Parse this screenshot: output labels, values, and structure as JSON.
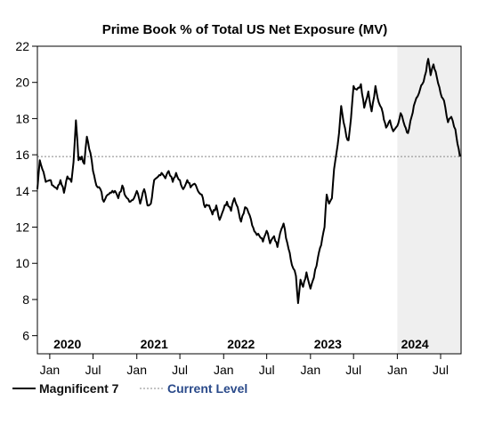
{
  "chart_data": {
    "type": "line",
    "title": "Prime Book % of Total US Net Exposure (MV)",
    "xlabel": "",
    "ylabel": "",
    "ylim": [
      5,
      22
    ],
    "yticks": [
      6,
      8,
      10,
      12,
      14,
      16,
      18,
      20,
      22
    ],
    "xlim": [
      "2019-11-10",
      "2024-09-25"
    ],
    "month_ticks": [
      {
        "date": "2020-01-01",
        "label": "Jan"
      },
      {
        "date": "2020-07-01",
        "label": "Jul"
      },
      {
        "date": "2021-01-01",
        "label": "Jan"
      },
      {
        "date": "2021-07-01",
        "label": "Jul"
      },
      {
        "date": "2022-01-01",
        "label": "Jan"
      },
      {
        "date": "2022-07-01",
        "label": "Jul"
      },
      {
        "date": "2023-01-01",
        "label": "Jan"
      },
      {
        "date": "2023-07-01",
        "label": "Jul"
      },
      {
        "date": "2024-01-01",
        "label": "Jan"
      },
      {
        "date": "2024-07-01",
        "label": "Jul"
      }
    ],
    "year_labels": [
      {
        "date": "2020-03-15",
        "label": "2020"
      },
      {
        "date": "2021-03-15",
        "label": "2021"
      },
      {
        "date": "2022-03-15",
        "label": "2022"
      },
      {
        "date": "2023-03-15",
        "label": "2023"
      },
      {
        "date": "2024-03-15",
        "label": "2024"
      }
    ],
    "shaded_region": {
      "start": "2024-01-01",
      "end": "2024-09-25",
      "color": "#efefef"
    },
    "reference_line": {
      "name": "Current Level",
      "value": 15.9,
      "color": "#888888"
    },
    "series": [
      {
        "name": "Magnificent 7",
        "color": "#000000",
        "points": [
          [
            "2019-11-10",
            14.1
          ],
          [
            "2019-11-20",
            15.7
          ],
          [
            "2019-12-01",
            15.2
          ],
          [
            "2019-12-15",
            14.5
          ],
          [
            "2020-01-01",
            14.6
          ],
          [
            "2020-01-15",
            14.3
          ],
          [
            "2020-02-01",
            14.1
          ],
          [
            "2020-02-15",
            14.6
          ],
          [
            "2020-03-01",
            13.9
          ],
          [
            "2020-03-15",
            14.8
          ],
          [
            "2020-04-01",
            14.5
          ],
          [
            "2020-04-10",
            15.6
          ],
          [
            "2020-04-20",
            17.9
          ],
          [
            "2020-05-01",
            15.7
          ],
          [
            "2020-05-15",
            15.9
          ],
          [
            "2020-05-25",
            15.5
          ],
          [
            "2020-06-05",
            17.0
          ],
          [
            "2020-06-20",
            16.1
          ],
          [
            "2020-07-01",
            15.1
          ],
          [
            "2020-07-15",
            14.3
          ],
          [
            "2020-08-01",
            14.1
          ],
          [
            "2020-08-15",
            13.4
          ],
          [
            "2020-09-01",
            13.8
          ],
          [
            "2020-09-15",
            13.9
          ],
          [
            "2020-10-01",
            14.0
          ],
          [
            "2020-10-15",
            13.6
          ],
          [
            "2020-11-01",
            14.3
          ],
          [
            "2020-11-15",
            13.7
          ],
          [
            "2020-12-01",
            13.4
          ],
          [
            "2020-12-15",
            13.5
          ],
          [
            "2021-01-01",
            14.0
          ],
          [
            "2021-01-15",
            13.3
          ],
          [
            "2021-02-01",
            14.1
          ],
          [
            "2021-02-15",
            13.2
          ],
          [
            "2021-03-01",
            13.3
          ],
          [
            "2021-03-15",
            14.6
          ],
          [
            "2021-04-01",
            14.8
          ],
          [
            "2021-04-15",
            15.0
          ],
          [
            "2021-05-01",
            14.7
          ],
          [
            "2021-05-15",
            15.1
          ],
          [
            "2021-06-01",
            14.5
          ],
          [
            "2021-06-15",
            15.0
          ],
          [
            "2021-07-01",
            14.6
          ],
          [
            "2021-07-15",
            14.1
          ],
          [
            "2021-08-01",
            14.6
          ],
          [
            "2021-08-15",
            14.2
          ],
          [
            "2021-09-01",
            14.4
          ],
          [
            "2021-09-15",
            14.0
          ],
          [
            "2021-10-01",
            13.8
          ],
          [
            "2021-10-15",
            13.1
          ],
          [
            "2021-11-01",
            13.2
          ],
          [
            "2021-11-15",
            12.7
          ],
          [
            "2021-12-01",
            13.2
          ],
          [
            "2021-12-15",
            12.4
          ],
          [
            "2022-01-01",
            13.0
          ],
          [
            "2022-01-15",
            13.4
          ],
          [
            "2022-02-01",
            12.9
          ],
          [
            "2022-02-15",
            13.6
          ],
          [
            "2022-03-01",
            13.1
          ],
          [
            "2022-03-15",
            12.3
          ],
          [
            "2022-04-01",
            13.1
          ],
          [
            "2022-04-15",
            12.8
          ],
          [
            "2022-05-01",
            12.1
          ],
          [
            "2022-05-15",
            11.7
          ],
          [
            "2022-06-01",
            11.5
          ],
          [
            "2022-06-15",
            11.2
          ],
          [
            "2022-07-01",
            11.8
          ],
          [
            "2022-07-15",
            11.1
          ],
          [
            "2022-08-01",
            11.5
          ],
          [
            "2022-08-15",
            10.9
          ],
          [
            "2022-09-01",
            11.9
          ],
          [
            "2022-09-10",
            12.2
          ],
          [
            "2022-09-20",
            11.4
          ],
          [
            "2022-10-01",
            10.8
          ],
          [
            "2022-10-15",
            9.9
          ],
          [
            "2022-11-01",
            9.3
          ],
          [
            "2022-11-10",
            7.8
          ],
          [
            "2022-11-20",
            9.1
          ],
          [
            "2022-12-01",
            8.7
          ],
          [
            "2022-12-15",
            9.5
          ],
          [
            "2023-01-01",
            8.6
          ],
          [
            "2023-01-15",
            9.2
          ],
          [
            "2023-02-01",
            10.3
          ],
          [
            "2023-02-15",
            11.0
          ],
          [
            "2023-03-01",
            12.0
          ],
          [
            "2023-03-10",
            13.8
          ],
          [
            "2023-03-20",
            13.3
          ],
          [
            "2023-04-01",
            13.6
          ],
          [
            "2023-04-10",
            15.2
          ],
          [
            "2023-04-20",
            16.1
          ],
          [
            "2023-05-01",
            17.2
          ],
          [
            "2023-05-10",
            18.7
          ],
          [
            "2023-05-20",
            17.8
          ],
          [
            "2023-06-01",
            17.0
          ],
          [
            "2023-06-10",
            16.8
          ],
          [
            "2023-06-20",
            18.0
          ],
          [
            "2023-07-01",
            19.8
          ],
          [
            "2023-07-15",
            19.6
          ],
          [
            "2023-08-01",
            19.9
          ],
          [
            "2023-08-15",
            18.6
          ],
          [
            "2023-09-01",
            19.5
          ],
          [
            "2023-09-15",
            18.4
          ],
          [
            "2023-10-01",
            19.8
          ],
          [
            "2023-10-15",
            18.9
          ],
          [
            "2023-11-01",
            18.3
          ],
          [
            "2023-11-15",
            17.5
          ],
          [
            "2023-12-01",
            17.9
          ],
          [
            "2023-12-15",
            17.3
          ],
          [
            "2024-01-01",
            17.6
          ],
          [
            "2024-01-15",
            18.3
          ],
          [
            "2024-02-01",
            17.6
          ],
          [
            "2024-02-15",
            17.2
          ],
          [
            "2024-03-01",
            18.1
          ],
          [
            "2024-03-15",
            18.9
          ],
          [
            "2024-04-01",
            19.4
          ],
          [
            "2024-04-15",
            19.9
          ],
          [
            "2024-05-01",
            20.6
          ],
          [
            "2024-05-10",
            21.3
          ],
          [
            "2024-05-20",
            20.4
          ],
          [
            "2024-06-01",
            21.0
          ],
          [
            "2024-06-15",
            20.3
          ],
          [
            "2024-07-01",
            19.4
          ],
          [
            "2024-07-15",
            19.0
          ],
          [
            "2024-08-01",
            17.8
          ],
          [
            "2024-08-15",
            18.1
          ],
          [
            "2024-09-01",
            17.4
          ],
          [
            "2024-09-10",
            16.6
          ],
          [
            "2024-09-20",
            15.9
          ]
        ]
      }
    ],
    "legend": {
      "position": "bottom-left",
      "items": [
        {
          "label": "Magnificent 7",
          "style": "solid",
          "color": "#000000",
          "text_color": "#111111"
        },
        {
          "label": "Current Level",
          "style": "dotted",
          "color": "#888888",
          "text_color": "#2a4a8a"
        }
      ]
    }
  }
}
